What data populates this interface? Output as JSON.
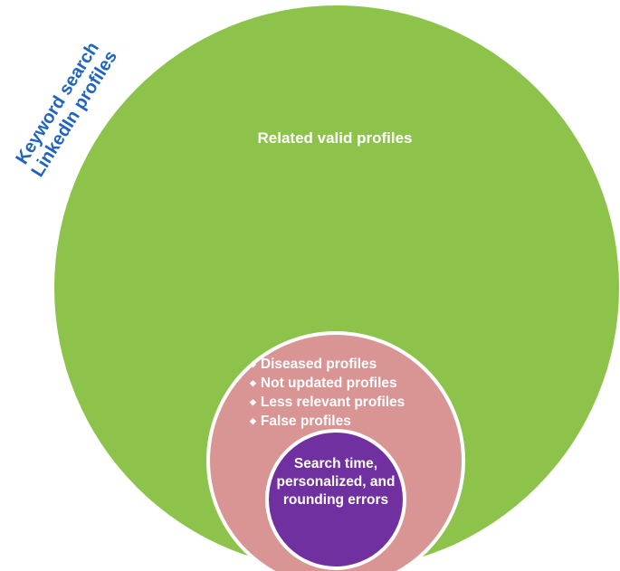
{
  "scope_label": {
    "line1": "Keyword search",
    "line2": "LinkedIn profiles"
  },
  "outer_circle": {
    "label": "Related valid profiles",
    "color": "#8dc34a"
  },
  "middle_circle": {
    "color": "#d99594",
    "bullet_icon": "diamond-icon",
    "items": [
      "Diseased profiles",
      "Not updated profiles",
      "Less relevant profiles",
      "False profiles"
    ]
  },
  "inner_circle": {
    "label": "Search time, personalized, and rounding errors",
    "color": "#7030a0"
  },
  "colors": {
    "scope_text": "#1f64c0",
    "outline": "#ffffff"
  }
}
